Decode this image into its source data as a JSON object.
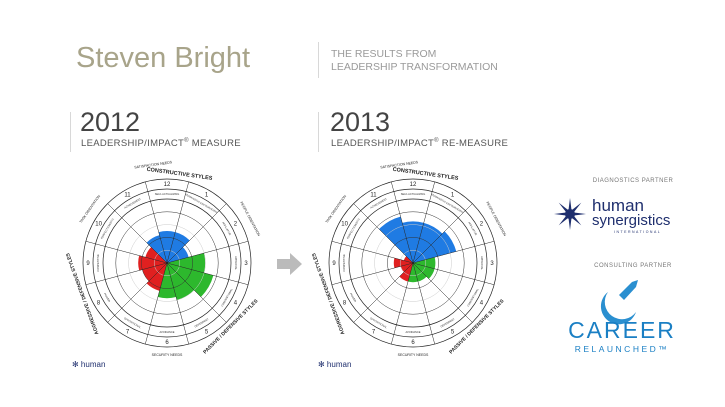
{
  "header": {
    "name": "Steven Bright",
    "subtitle_line1": "THE RESULTS FROM",
    "subtitle_line2": "LEADERSHIP TRANSFORMATION"
  },
  "panels": [
    {
      "year": "2012",
      "label": "LEADERSHIP/IMPACT",
      "reg": "®",
      "suffix": " MEASURE"
    },
    {
      "year": "2013",
      "label": "LEADERSHIP/IMPACT",
      "reg": "®",
      "suffix": " RE-MEASURE"
    }
  ],
  "partners": {
    "diagnostics_label": "DIAGNOSTICS  PARTNER",
    "diagnostics_logo": "human synergistics INTERNATIONAL",
    "consulting_label": "CONSULTING  PARTNER",
    "consulting_logo": "CAREER RELAUNCHED™"
  },
  "colors": {
    "constructive": "#1f7be3",
    "passive": "#2db82d",
    "aggressive": "#e02020",
    "title": "#a8a48a"
  },
  "chart_data": {
    "type": "circumplex",
    "styles": [
      "Humanistic-Encouraging",
      "Affiliative",
      "Approval",
      "Conventional",
      "Dependent",
      "Avoidance",
      "Oppositional",
      "Power",
      "Competitive",
      "Perfectionistic",
      "Achievement",
      "Self-Actualizing"
    ],
    "numbers": [
      "1",
      "2",
      "3",
      "4",
      "5",
      "6",
      "7",
      "8",
      "9",
      "10",
      "11",
      "12"
    ],
    "clusters": {
      "constructive": "CONSTRUCTIVE STYLES",
      "passive": "PASSIVE / DEFENSIVE STYLES",
      "aggressive": "AGGRESSIVE / DEFENSIVE STYLES"
    },
    "needs": {
      "top": "SATISFACTION NEEDS",
      "bottom": "SECURITY NEEDS",
      "left": "TASK ORIENTATION",
      "right": "PEOPLE ORIENTATION"
    },
    "scale": [
      0,
      100
    ],
    "series": [
      {
        "name": "2012",
        "values": [
          50,
          35,
          60,
          75,
          60,
          55,
          45,
          40,
          45,
          35,
          45,
          50
        ]
      },
      {
        "name": "2013",
        "values": [
          65,
          70,
          35,
          35,
          30,
          30,
          30,
          20,
          30,
          15,
          75,
          65
        ]
      }
    ]
  }
}
